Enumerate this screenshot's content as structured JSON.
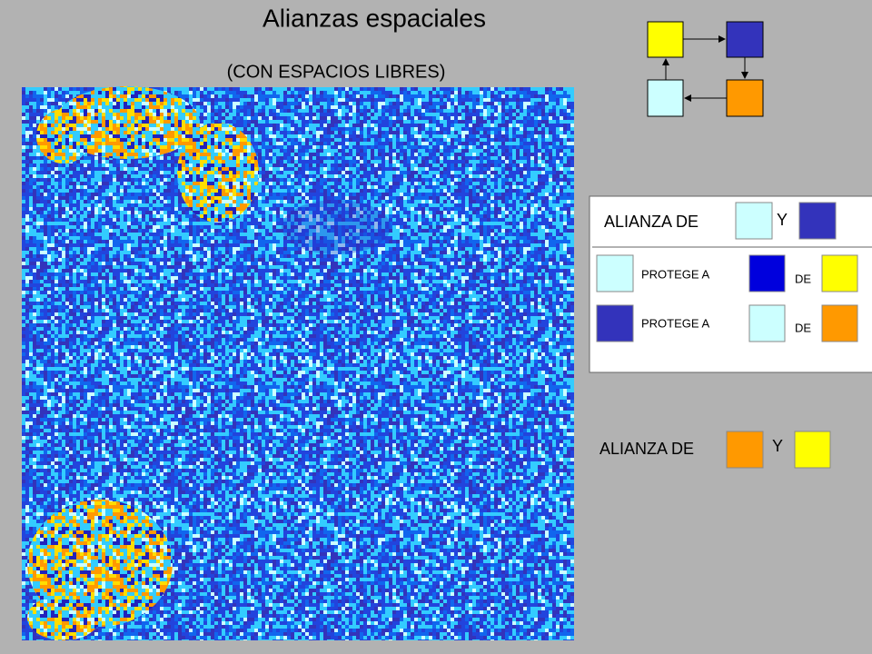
{
  "header": {
    "title": "Alianzas espaciales",
    "subtitle": "(CON ESPACIOS LIBRES)"
  },
  "alliance_1": {
    "label": "ALIANZA DE",
    "and": "Y",
    "rows": [
      {
        "protects": "PROTEGE A",
        "from": "DE"
      },
      {
        "protects": "PROTEGE A",
        "from": "DE"
      }
    ]
  },
  "alliance_2": {
    "label": "ALIANZA DE",
    "and": "Y"
  }
}
